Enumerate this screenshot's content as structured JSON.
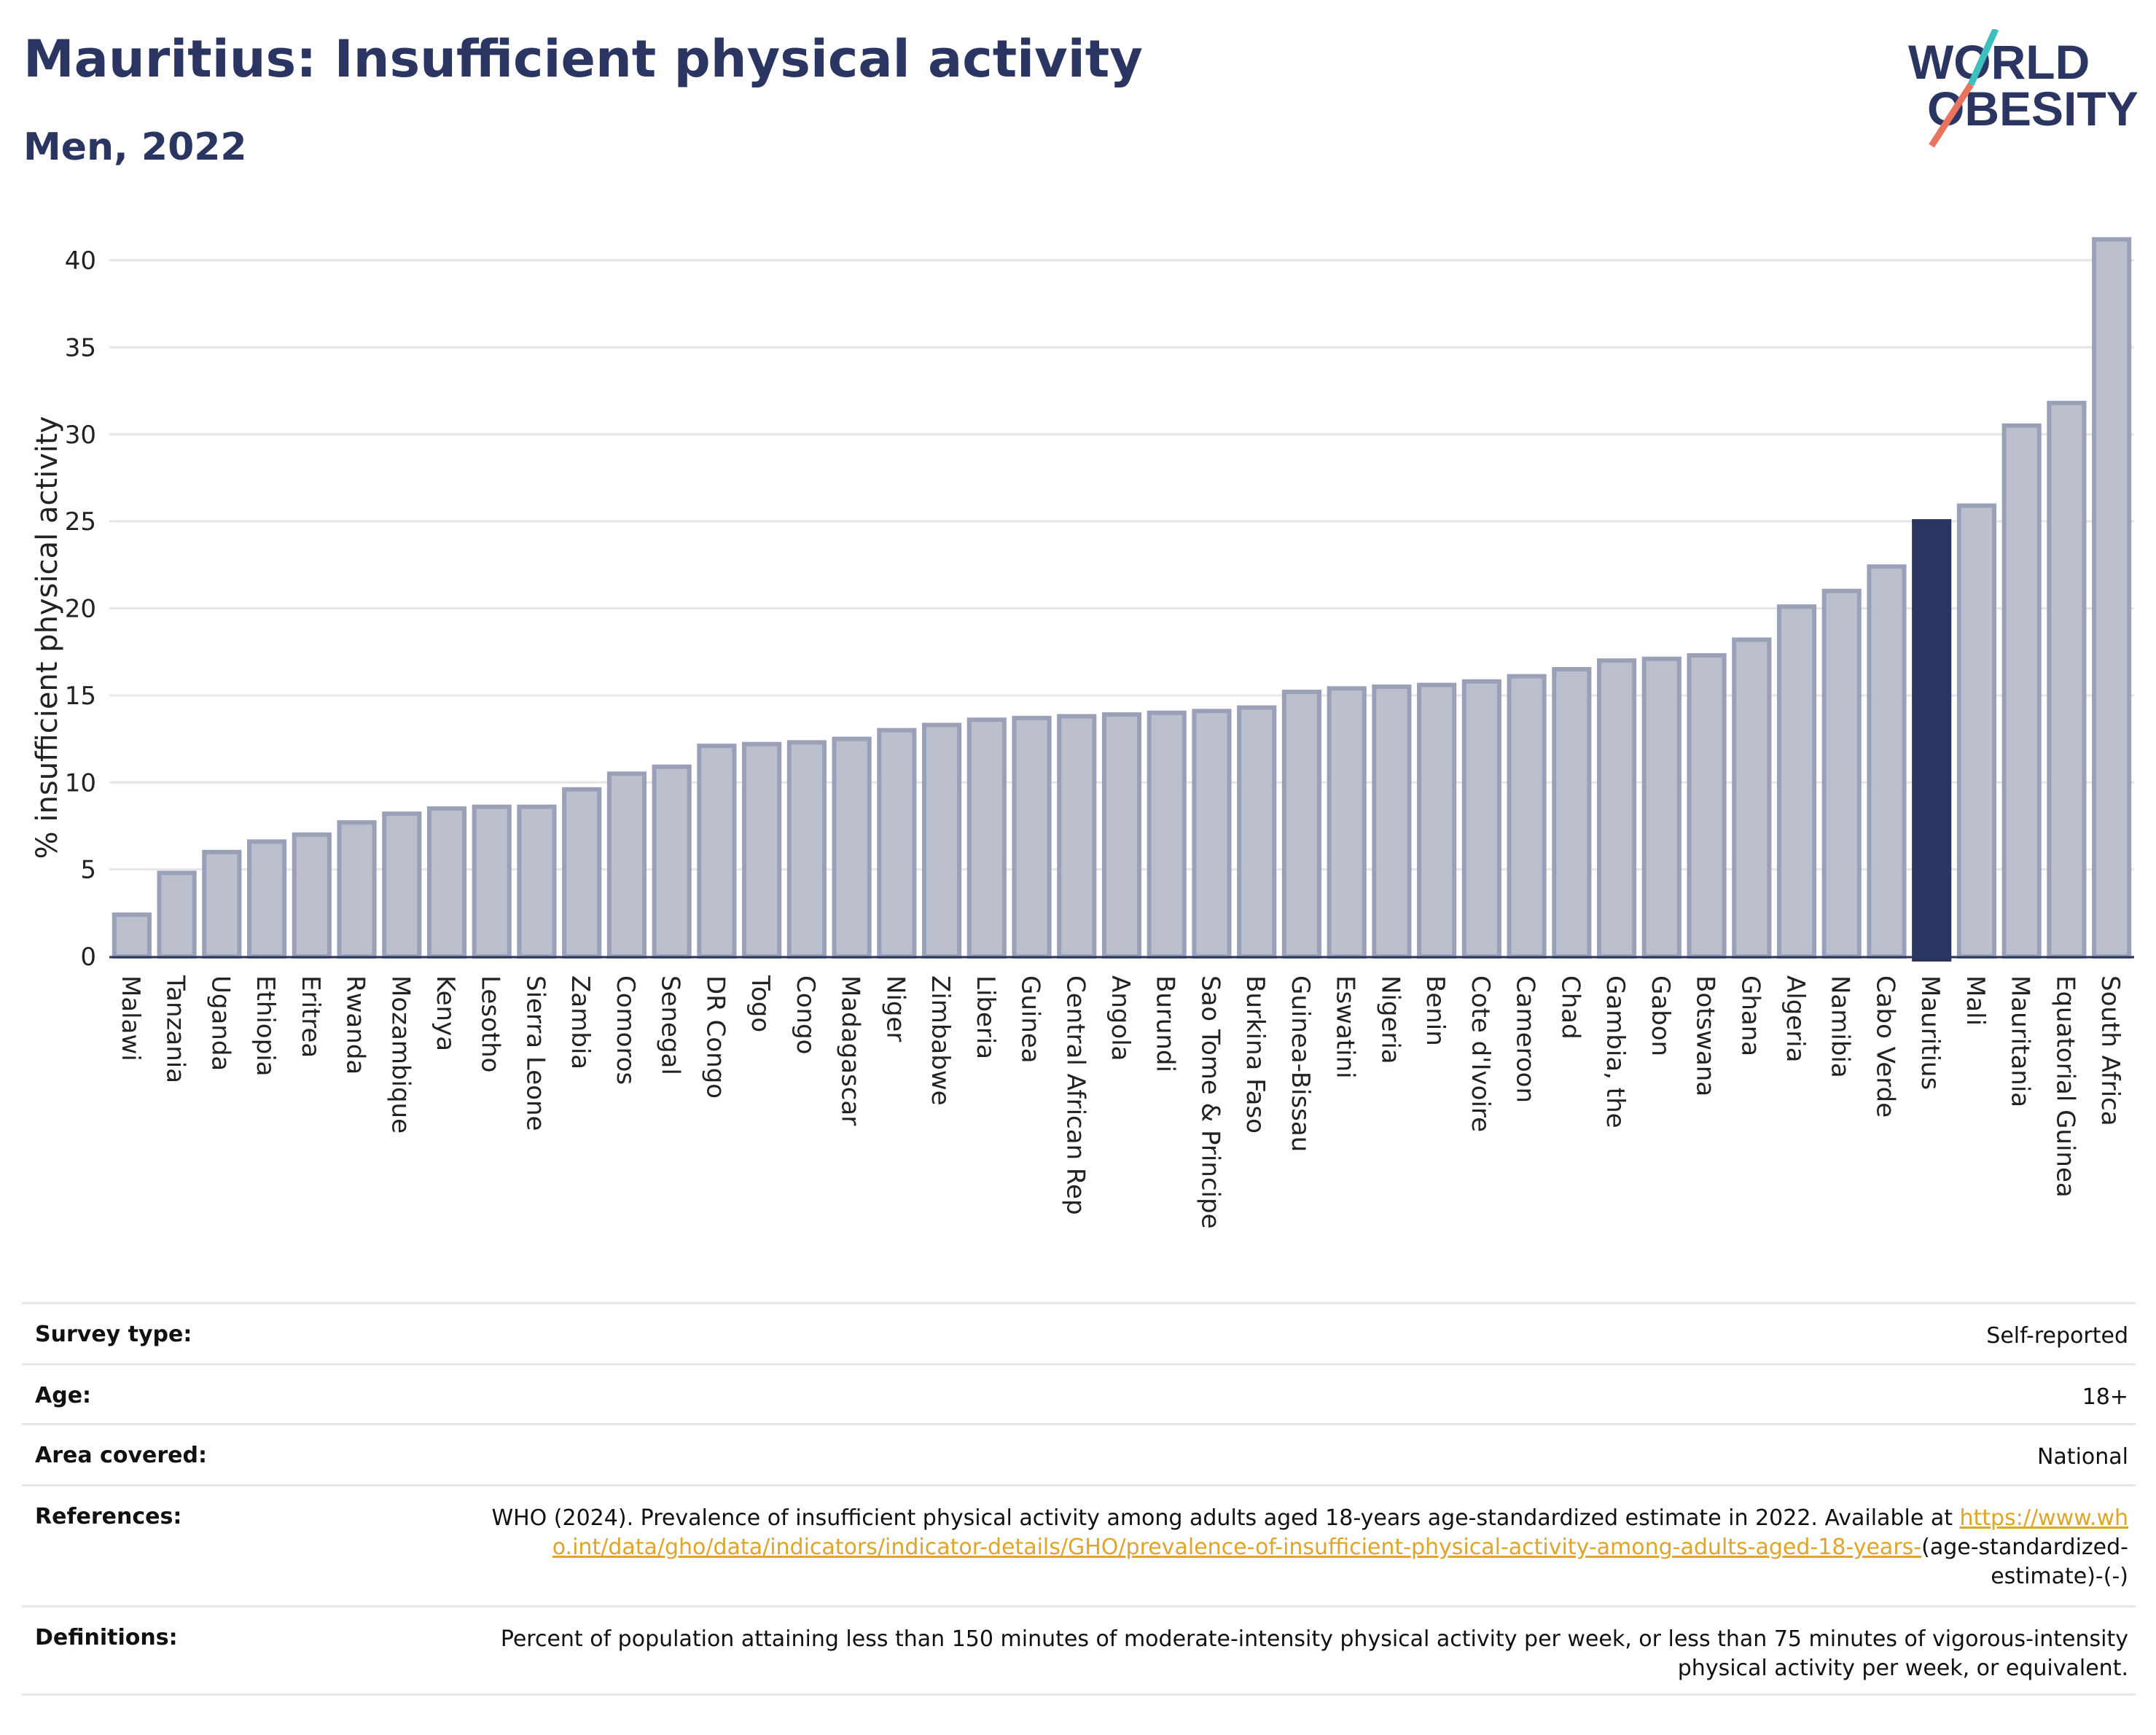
{
  "header": {
    "title": "Mauritius: Insufficient physical activity",
    "subtitle": "Men, 2022",
    "logo_line1": "WORLD",
    "logo_line2": "OBESITY"
  },
  "colors": {
    "bar": "#bcc0cd",
    "bar_stroke": "#9aa0b7",
    "highlight": "#2b3561",
    "title": "#2b3561",
    "link": "#e0a526",
    "logo_teal": "#3bbfbf",
    "logo_coral": "#e8735e"
  },
  "chart_data": {
    "type": "bar",
    "ylabel": "% insufficient physical activity",
    "ylim": [
      0,
      42
    ],
    "yticks": [
      0,
      5,
      10,
      15,
      20,
      25,
      30,
      35,
      40
    ],
    "grid": true,
    "highlight": "Mauritius",
    "categories": [
      "Malawi",
      "Tanzania",
      "Uganda",
      "Ethiopia",
      "Eritrea",
      "Rwanda",
      "Mozambique",
      "Kenya",
      "Lesotho",
      "Sierra Leone",
      "Zambia",
      "Comoros",
      "Senegal",
      "DR Congo",
      "Togo",
      "Congo",
      "Madagascar",
      "Niger",
      "Zimbabwe",
      "Liberia",
      "Guinea",
      "Central African Rep",
      "Angola",
      "Burundi",
      "Sao Tome & Principe",
      "Burkina Faso",
      "Guinea-Bissau",
      "Eswatini",
      "Nigeria",
      "Benin",
      "Cote d'Ivoire",
      "Cameroon",
      "Chad",
      "Gambia, the",
      "Gabon",
      "Botswana",
      "Ghana",
      "Algeria",
      "Namibia",
      "Cabo Verde",
      "Mauritius",
      "Mali",
      "Mauritania",
      "Equatorial Guinea",
      "South Africa"
    ],
    "values": [
      2.4,
      4.8,
      6.0,
      6.6,
      7.0,
      7.7,
      8.2,
      8.5,
      8.6,
      8.6,
      9.6,
      10.5,
      10.9,
      12.1,
      12.2,
      12.3,
      12.5,
      13.0,
      13.3,
      13.6,
      13.7,
      13.8,
      13.9,
      14.0,
      14.1,
      14.3,
      15.2,
      15.4,
      15.5,
      15.6,
      15.8,
      16.1,
      16.5,
      17.0,
      17.1,
      17.3,
      18.2,
      20.1,
      21.0,
      22.4,
      25.0,
      25.9,
      30.5,
      31.8,
      41.2
    ]
  },
  "meta": {
    "survey_label": "Survey type:",
    "survey_value": "Self-reported",
    "age_label": "Age:",
    "age_value": "18+",
    "area_label": "Area covered:",
    "area_value": "National",
    "ref_label": "References:",
    "ref_text": "WHO (2024). Prevalence of insufficient physical activity among adults aged 18-years age-standardized estimate in 2022. Available at",
    "ref_link": "https://www.who.int/data/gho/data/indicators/indicator-details/GHO/prevalence-of-insufficient-physical-activity-among-adults-aged-18-years-",
    "ref_suffix": "(age-standardized-estimate)-(-)",
    "def_label": "Definitions:",
    "def_text": "Percent of population attaining less than 150 minutes of moderate-intensity physical activity per week, or less than 75 minutes of vigorous-intensity physical activity per week, or equivalent."
  }
}
